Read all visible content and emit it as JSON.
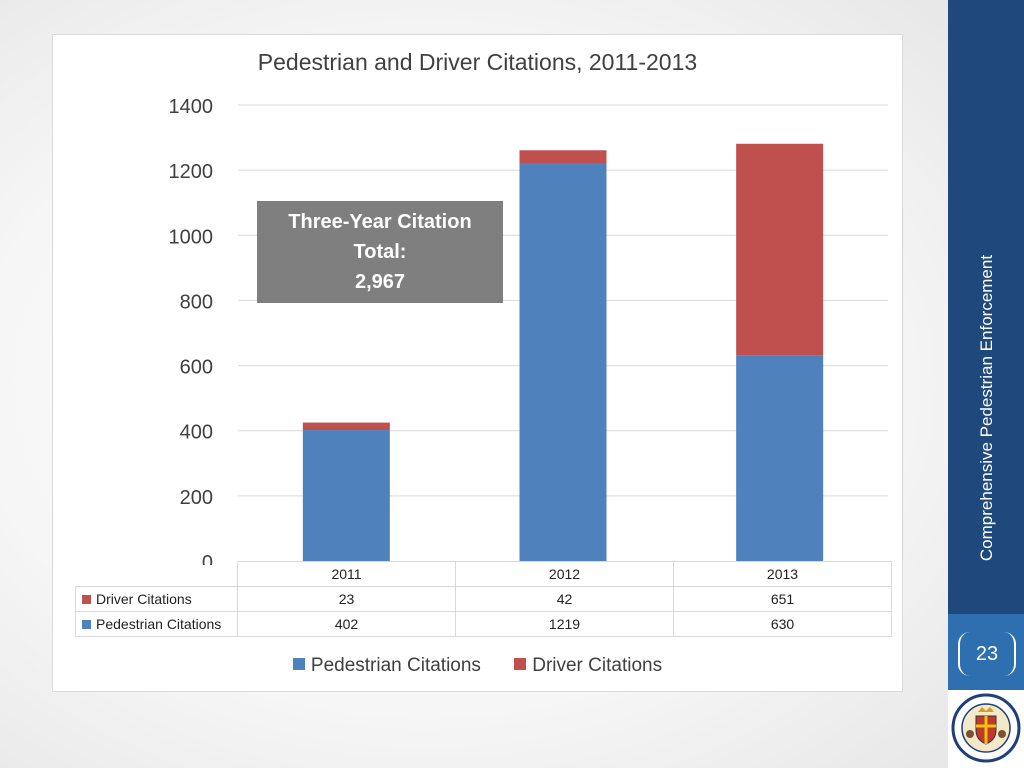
{
  "chart_data": {
    "type": "bar",
    "stacked": true,
    "title": "Pedestrian and Driver Citations, 2011-2013",
    "categories": [
      "2011",
      "2012",
      "2013"
    ],
    "series": [
      {
        "name": "Pedestrian Citations",
        "values": [
          402,
          1219,
          630
        ],
        "color": "#4f81bd"
      },
      {
        "name": "Driver Citations",
        "values": [
          23,
          42,
          651
        ],
        "color": "#c0504d"
      }
    ],
    "ylim": [
      0,
      1400
    ],
    "yticks": [
      0,
      200,
      400,
      600,
      800,
      1000,
      1200,
      1400
    ],
    "grid": true,
    "legend": "bottom",
    "data_table": true,
    "annotation": {
      "line1": "Three-Year Citation",
      "line2": "Total:",
      "line3": "2,967"
    }
  },
  "sidebar": {
    "title": "Comprehensive Pedestrian Enforcement",
    "page_number": "23"
  },
  "colors": {
    "sidebar": "#1f497d",
    "sidebar_bottom": "#2e6fb0",
    "callout": "#7f7f7f"
  }
}
